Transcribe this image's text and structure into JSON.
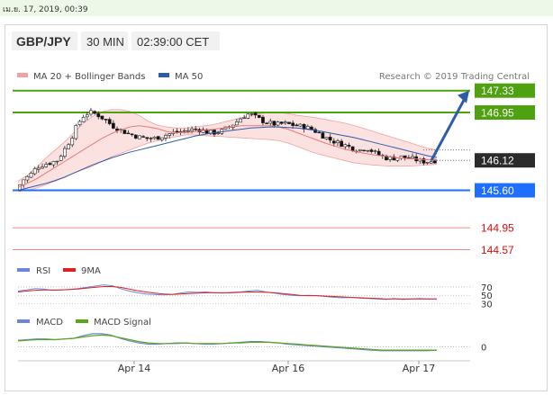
{
  "datetime_bar": "เม.ย. 17, 2019, 00:39",
  "header": {
    "symbol": "GBP/JPY",
    "interval": "30 MIN",
    "time": "02:39:00 CET"
  },
  "colors": {
    "green": "#4ea10f",
    "blue": "#2d5ca9",
    "bright_blue": "#1f6fff",
    "red": "#d40f0f",
    "pink_line": "#f0a0a0",
    "band_fill": "#fbdcdc",
    "candle_up": "#ffffff",
    "candle_dn": "#111111",
    "rsi": "#6b86d8",
    "nine_ma": "#e02020",
    "macd": "#6b86d8",
    "macd_signal": "#5aa51b"
  },
  "chart_data": [
    {
      "type": "candlestick",
      "legend": [
        "MA 20 + Bollinger Bands",
        "MA 50"
      ],
      "attribution": "Research © 2019 Trading Central",
      "x_ticks": [
        "Apr 14",
        "Apr 16",
        "Apr 17"
      ],
      "ylim": [
        144.5,
        147.45
      ],
      "levels": [
        {
          "value": 147.33,
          "label": "147.33",
          "role": "target-2",
          "color": "green"
        },
        {
          "value": 146.95,
          "label": "146.95",
          "role": "target-1",
          "color": "green"
        },
        {
          "value": 146.12,
          "label": "146.12",
          "role": "last-price",
          "color": "dark"
        },
        {
          "value": 145.6,
          "label": "145.60",
          "role": "pivot",
          "color": "blue"
        },
        {
          "value": 144.95,
          "label": "144.95",
          "role": "support-1",
          "color": "red"
        },
        {
          "value": 144.57,
          "label": "144.57",
          "role": "support-2",
          "color": "red"
        }
      ],
      "close_path": [
        145.6,
        145.78,
        145.86,
        146.0,
        146.05,
        146.08,
        146.12,
        146.3,
        146.5,
        146.76,
        146.92,
        146.95,
        146.9,
        146.82,
        146.72,
        146.66,
        146.6,
        146.56,
        146.52,
        146.5,
        146.5,
        146.53,
        146.57,
        146.6,
        146.62,
        146.64,
        146.66,
        146.65,
        146.6,
        146.6,
        146.63,
        146.7,
        146.78,
        146.88,
        146.93,
        146.86,
        146.8,
        146.76,
        146.74,
        146.76,
        146.74,
        146.72,
        146.7,
        146.66,
        146.6,
        146.52,
        146.46,
        146.42,
        146.38,
        146.33,
        146.3,
        146.34,
        146.27,
        146.2,
        146.16,
        146.16,
        146.18,
        146.16,
        146.14,
        146.1,
        146.1,
        146.12
      ],
      "band_upper": [
        145.76,
        145.86,
        146.0,
        146.16,
        146.3,
        146.44,
        146.6,
        146.76,
        146.88,
        146.96,
        147.0,
        147.0,
        146.97,
        146.9,
        146.8,
        146.73,
        146.7,
        146.68,
        146.68,
        146.7,
        146.72,
        146.74,
        146.78,
        146.82,
        146.86,
        146.9,
        146.93,
        146.95,
        146.95,
        146.93,
        146.9,
        146.88,
        146.86,
        146.83,
        146.8,
        146.77,
        146.73,
        146.68,
        146.63,
        146.58,
        146.53,
        146.48,
        146.43,
        146.38,
        146.33,
        146.3
      ],
      "band_lower": [
        145.58,
        145.6,
        145.64,
        145.7,
        145.76,
        145.82,
        145.9,
        145.96,
        146.02,
        146.1,
        146.18,
        146.24,
        146.3,
        146.36,
        146.42,
        146.46,
        146.5,
        146.53,
        146.56,
        146.56,
        146.55,
        146.54,
        146.53,
        146.52,
        146.51,
        146.5,
        146.49,
        146.48,
        146.46,
        146.42,
        146.36,
        146.3,
        146.24,
        146.2,
        146.16,
        146.12,
        146.08,
        146.06,
        146.04,
        146.03,
        146.02,
        146.02,
        146.02,
        146.03,
        146.04,
        146.05
      ],
      "ma20": [
        145.65,
        145.72,
        145.8,
        145.9,
        146.0,
        146.1,
        146.2,
        146.3,
        146.4,
        146.5,
        146.58,
        146.65,
        146.7,
        146.72,
        146.7,
        146.67,
        146.62,
        146.6,
        146.6,
        146.62,
        146.64,
        146.66,
        146.68,
        146.7,
        146.72,
        146.72,
        146.72,
        146.72,
        146.7,
        146.66,
        146.6,
        146.54,
        146.48,
        146.42,
        146.37,
        146.32,
        146.28,
        146.25,
        146.22,
        146.2,
        146.18,
        146.16,
        146.15,
        146.14,
        146.13,
        146.13
      ],
      "ma50": [
        145.6,
        145.64,
        145.68,
        145.72,
        145.77,
        145.83,
        145.9,
        145.97,
        146.04,
        146.1,
        146.16,
        146.21,
        146.26,
        146.3,
        146.34,
        146.38,
        146.42,
        146.46,
        146.5,
        146.54,
        146.57,
        146.6,
        146.62,
        146.64,
        146.66,
        146.68,
        146.69,
        146.7,
        146.7,
        146.69,
        146.68,
        146.66,
        146.64,
        146.61,
        146.58,
        146.55,
        146.52,
        146.48,
        146.44,
        146.4,
        146.36,
        146.32,
        146.28,
        146.24,
        146.2,
        146.17
      ]
    },
    {
      "type": "line",
      "legend": [
        "RSI",
        "9MA"
      ],
      "y_ticks": [
        "70",
        "50",
        "30"
      ],
      "ylim": [
        20,
        85
      ],
      "series": [
        {
          "name": "RSI",
          "values": [
            60,
            63,
            66,
            65,
            62,
            63,
            64,
            66,
            69,
            72,
            75,
            73,
            66,
            60,
            56,
            53,
            52,
            51,
            52,
            55,
            58,
            57,
            58,
            56,
            55,
            57,
            58,
            60,
            62,
            58,
            55,
            52,
            50,
            49,
            50,
            49,
            47,
            45,
            44,
            45,
            43,
            42,
            41,
            40,
            42,
            40,
            41,
            42,
            41,
            41
          ]
        },
        {
          "name": "9MA",
          "values": [
            58,
            60,
            62,
            63,
            63,
            63,
            64,
            65,
            67,
            69,
            71,
            71,
            69,
            65,
            61,
            58,
            55,
            53,
            52,
            53,
            54,
            55,
            56,
            56,
            56,
            56,
            57,
            58,
            58,
            57,
            56,
            54,
            52,
            50,
            49,
            49,
            48,
            47,
            46,
            45,
            44,
            43,
            42,
            41,
            41,
            41,
            41,
            41,
            41,
            41
          ]
        }
      ]
    },
    {
      "type": "line",
      "legend": [
        "MACD",
        "MACD Signal"
      ],
      "y_ticks": [
        "0"
      ],
      "ylim": [
        -0.2,
        0.35
      ],
      "series": [
        {
          "name": "MACD",
          "values": [
            0.1,
            0.11,
            0.12,
            0.12,
            0.11,
            0.12,
            0.13,
            0.17,
            0.2,
            0.2,
            0.18,
            0.13,
            0.09,
            0.06,
            0.04,
            0.04,
            0.05,
            0.06,
            0.06,
            0.05,
            0.04,
            0.04,
            0.05,
            0.06,
            0.07,
            0.08,
            0.08,
            0.07,
            0.06,
            0.04,
            0.03,
            0.02,
            0.01,
            0.0,
            -0.01,
            -0.02,
            -0.03,
            -0.04,
            -0.05,
            -0.06,
            -0.06,
            -0.06,
            -0.06,
            -0.06,
            -0.06,
            -0.05
          ]
        },
        {
          "name": "MACD Signal",
          "values": [
            0.09,
            0.1,
            0.11,
            0.11,
            0.11,
            0.12,
            0.13,
            0.15,
            0.17,
            0.18,
            0.17,
            0.14,
            0.11,
            0.08,
            0.06,
            0.05,
            0.05,
            0.05,
            0.06,
            0.05,
            0.05,
            0.05,
            0.05,
            0.06,
            0.06,
            0.07,
            0.07,
            0.07,
            0.06,
            0.05,
            0.04,
            0.03,
            0.02,
            0.01,
            0.0,
            -0.01,
            -0.02,
            -0.03,
            -0.04,
            -0.05,
            -0.05,
            -0.05,
            -0.05,
            -0.05,
            -0.05,
            -0.05
          ]
        }
      ]
    }
  ]
}
